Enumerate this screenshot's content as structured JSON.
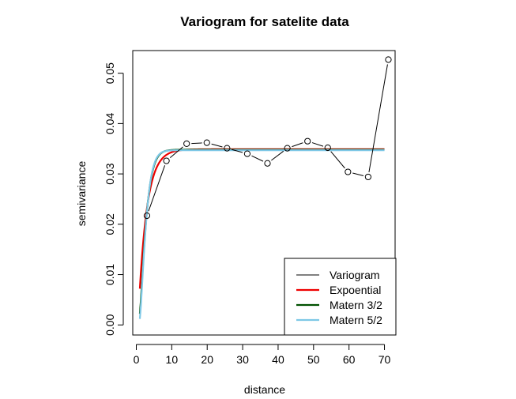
{
  "chart_data": {
    "type": "line",
    "title": "Variogram for satelite data",
    "xlabel": "distance",
    "ylabel": "semivariance",
    "xlim": [
      -1,
      73
    ],
    "ylim": [
      -0.002,
      0.0545
    ],
    "x_ticks": [
      0,
      10,
      20,
      30,
      40,
      50,
      60,
      70
    ],
    "y_ticks": [
      0.0,
      0.01,
      0.02,
      0.03,
      0.04,
      0.05
    ],
    "y_tick_labels": [
      "0.00",
      "0.01",
      "0.02",
      "0.03",
      "0.04",
      "0.05"
    ],
    "grid": false,
    "legend_position": "bottom-right",
    "variogram": {
      "name": "Variogram",
      "color": "#000000",
      "x": [
        3,
        8.5,
        14.2,
        19.9,
        25.6,
        31.3,
        37,
        42.6,
        48.3,
        54,
        59.7,
        65.4,
        71.1
      ],
      "y": [
        0.0217,
        0.0326,
        0.036,
        0.0362,
        0.0351,
        0.034,
        0.0321,
        0.0351,
        0.0365,
        0.0352,
        0.0304,
        0.0294,
        0.0527
      ]
    },
    "models": [
      {
        "name": "Expoential",
        "color": "#ee0000",
        "sill": 0.0349,
        "nugget": 0.0072,
        "range": 2.8,
        "power": 1.0
      },
      {
        "name": "Matern 3/2",
        "color": "#005000",
        "sill": 0.0348,
        "nugget": 0.0022,
        "range": 2.35,
        "power": 1.25
      },
      {
        "name": "Matern 5/2",
        "color": "#7ec8e6",
        "sill": 0.0347,
        "nugget": 0.0012,
        "range": 2.3,
        "power": 1.3
      }
    ],
    "model_x_range": [
      1,
      70
    ]
  }
}
